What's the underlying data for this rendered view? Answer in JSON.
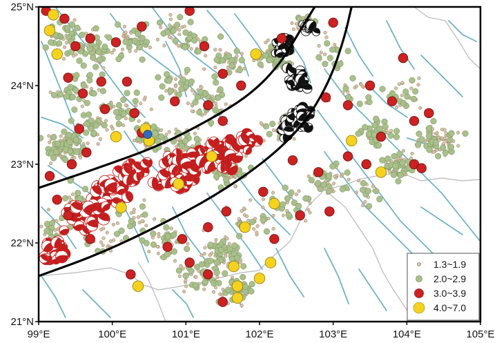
{
  "chart_data": {
    "type": "scatter",
    "title": "",
    "xlabel": "",
    "ylabel": "",
    "xlim": [
      99,
      105
    ],
    "ylim": [
      21,
      25
    ],
    "x_tick_labels": [
      "99°E",
      "100°E",
      "101°E",
      "102°E",
      "103°E",
      "104°E",
      "105°E"
    ],
    "y_tick_labels": [
      "21°N",
      "22°N",
      "23°N",
      "24°N",
      "25°N"
    ],
    "x_ticks": [
      99,
      100,
      101,
      102,
      103,
      104,
      105
    ],
    "y_ticks": [
      21,
      22,
      23,
      24,
      25
    ],
    "legend": {
      "position": "bottom-right",
      "entries": [
        {
          "label": "1.3~1.9",
          "color": "#d9c3a5"
        },
        {
          "label": "2.0~2.9",
          "color": "#a9c08a"
        },
        {
          "label": "3.0~3.9",
          "color": "#cc2222"
        },
        {
          "label": "4.0~7.0",
          "color": "#f5d21e"
        }
      ]
    },
    "colors": {
      "small": "#d9c3a5",
      "medium": "#a9c08a",
      "large": "#cc2222",
      "major": "#f5d21e",
      "fault": "#6fb3c8",
      "border": "#b5b5b5",
      "zone": "#000000",
      "blue_event": "#2b6cc4"
    },
    "zone_lines": [
      [
        [
          99.0,
          22.7
        ],
        [
          99.8,
          22.95
        ],
        [
          100.6,
          23.22
        ],
        [
          101.3,
          23.55
        ],
        [
          101.9,
          23.9
        ],
        [
          102.3,
          24.3
        ],
        [
          102.55,
          24.7
        ],
        [
          102.75,
          25.0
        ]
      ],
      [
        [
          99.0,
          21.58
        ],
        [
          99.8,
          21.85
        ],
        [
          100.6,
          22.2
        ],
        [
          101.4,
          22.6
        ],
        [
          102.1,
          23.05
        ],
        [
          102.6,
          23.5
        ],
        [
          102.95,
          24.05
        ],
        [
          103.15,
          24.6
        ],
        [
          103.25,
          25.0
        ]
      ]
    ],
    "major_events": [
      [
        99.2,
        24.9
      ],
      [
        99.15,
        24.7
      ],
      [
        99.25,
        24.4
      ],
      [
        100.05,
        23.35
      ],
      [
        100.45,
        23.45
      ],
      [
        100.5,
        23.3
      ],
      [
        100.12,
        22.45
      ],
      [
        100.9,
        22.75
      ],
      [
        101.35,
        23.1
      ],
      [
        101.95,
        24.4
      ],
      [
        102.2,
        22.5
      ],
      [
        101.8,
        22.2
      ],
      [
        101.65,
        21.7
      ],
      [
        101.7,
        21.45
      ],
      [
        101.7,
        21.3
      ],
      [
        102.0,
        21.55
      ],
      [
        100.35,
        21.45
      ],
      [
        103.25,
        23.3
      ],
      [
        103.65,
        22.9
      ],
      [
        102.15,
        21.75
      ]
    ],
    "large_events": [
      [
        99.1,
        24.95
      ],
      [
        99.35,
        24.85
      ],
      [
        99.5,
        24.5
      ],
      [
        99.7,
        24.6
      ],
      [
        99.4,
        24.1
      ],
      [
        99.6,
        23.9
      ],
      [
        99.85,
        24.05
      ],
      [
        100.05,
        24.55
      ],
      [
        100.4,
        24.75
      ],
      [
        100.2,
        24.05
      ],
      [
        99.9,
        23.7
      ],
      [
        100.3,
        23.65
      ],
      [
        100.4,
        23.4
      ],
      [
        99.55,
        23.45
      ],
      [
        99.65,
        23.15
      ],
      [
        99.45,
        23.0
      ],
      [
        99.15,
        22.85
      ],
      [
        101.05,
        24.95
      ],
      [
        101.25,
        24.5
      ],
      [
        101.5,
        24.15
      ],
      [
        101.75,
        24.0
      ],
      [
        101.3,
        23.75
      ],
      [
        100.85,
        23.8
      ],
      [
        101.5,
        23.55
      ],
      [
        102.3,
        24.6
      ],
      [
        103.0,
        24.8
      ],
      [
        102.9,
        23.85
      ],
      [
        103.2,
        23.75
      ],
      [
        103.5,
        24.0
      ],
      [
        103.95,
        24.35
      ],
      [
        103.8,
        23.8
      ],
      [
        104.3,
        23.65
      ],
      [
        104.1,
        23.55
      ],
      [
        103.2,
        23.1
      ],
      [
        103.45,
        23.0
      ],
      [
        103.65,
        23.35
      ],
      [
        104.1,
        23.0
      ],
      [
        104.2,
        22.95
      ],
      [
        102.8,
        22.9
      ],
      [
        102.45,
        23.05
      ],
      [
        102.05,
        22.65
      ],
      [
        102.55,
        22.35
      ],
      [
        102.95,
        22.4
      ],
      [
        102.2,
        22.05
      ],
      [
        101.55,
        22.4
      ],
      [
        101.3,
        22.2
      ],
      [
        100.95,
        22.05
      ],
      [
        100.75,
        21.95
      ],
      [
        101.05,
        21.75
      ],
      [
        101.3,
        21.6
      ],
      [
        101.5,
        21.25
      ],
      [
        100.25,
        21.6
      ],
      [
        99.7,
        22.05
      ],
      [
        99.4,
        22.35
      ],
      [
        99.25,
        22.55
      ]
    ]
  }
}
